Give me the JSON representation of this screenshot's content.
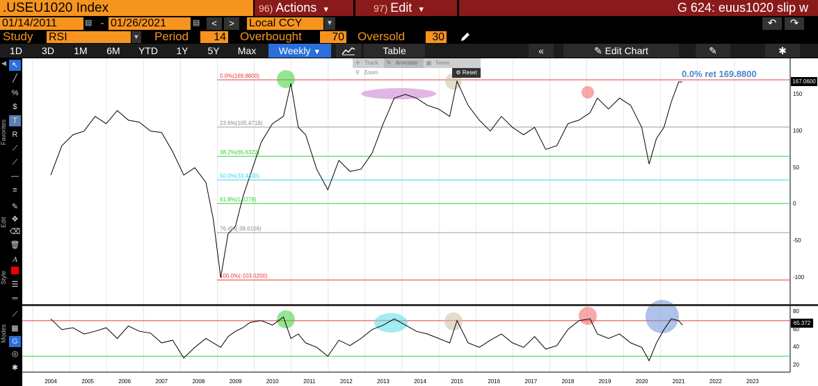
{
  "header": {
    "ticker": ".USEU1020 Index",
    "actions_num": "96)",
    "actions_label": "Actions",
    "edit_num": "97)",
    "edit_label": "Edit",
    "window_title": "G 624: euus1020 slip w"
  },
  "range": {
    "start_date": "01/14/2011",
    "separator": "-",
    "end_date": "01/26/2021",
    "prev": "<",
    "next": ">",
    "currency": "Local CCY"
  },
  "study": {
    "study_label": "Study",
    "study_value": "RSI",
    "period_label": "Period",
    "period_value": "14",
    "overbought_label": "Overbought",
    "overbought_value": "70",
    "oversold_label": "Oversold",
    "oversold_value": "30"
  },
  "toolbar": {
    "periods": [
      "1D",
      "3D",
      "1M",
      "6M",
      "YTD",
      "1Y",
      "5Y",
      "Max"
    ],
    "frequency": "Weekly",
    "table_label": "Table",
    "edit_chart_label": "Edit Chart"
  },
  "sidebar": {
    "favorites_label": "Favorites",
    "edit_label": "Edit",
    "style_label": "Style",
    "modes_label": "Modes"
  },
  "overlay_tools": {
    "track": "Track",
    "annotate": "Annotate",
    "news": "News",
    "zoom": "Zoom",
    "reset": "Reset"
  },
  "annotations": {
    "ret_label": "0.0% ret 169.8800",
    "price_last": "167.0600",
    "rsi_last": "65.372"
  },
  "fib_levels": [
    {
      "label": "0.0%(169.8800)",
      "value": 169.88,
      "color": "#e8383b"
    },
    {
      "label": "23.6%(105.4718)",
      "value": 105.4718,
      "color": "#9a9a9a"
    },
    {
      "label": "38.2%(65.6322)",
      "value": 65.6322,
      "color": "#2fd32f"
    },
    {
      "label": "50.0%(33.4300)",
      "value": 33.43,
      "color": "#33d6e6"
    },
    {
      "label": "61.8%(1.2278)",
      "value": 1.2278,
      "color": "#2fd32f"
    },
    {
      "label": "76.4%(-38.6156)",
      "value": -38.6156,
      "color": "#9a9a9a"
    },
    {
      "label": "100.0%(-103.0200)",
      "value": -103.02,
      "color": "#e8383b"
    }
  ],
  "chart_data": [
    {
      "type": "line",
      "title": "",
      "ylim": [
        -125,
        185
      ],
      "yticks": [
        "150",
        "100",
        "50",
        "0",
        "-50",
        "-100"
      ],
      "x": [
        2004.0,
        2004.3,
        2004.6,
        2004.9,
        2005.2,
        2005.5,
        2005.8,
        2006.1,
        2006.4,
        2006.7,
        2007.0,
        2007.3,
        2007.6,
        2007.9,
        2008.2,
        2008.4,
        2008.6,
        2008.8,
        2009.0,
        2009.2,
        2009.4,
        2009.7,
        2010.0,
        2010.3,
        2010.5,
        2010.7,
        2010.9,
        2011.2,
        2011.5,
        2011.8,
        2012.1,
        2012.4,
        2012.7,
        2013.0,
        2013.3,
        2013.6,
        2013.9,
        2014.2,
        2014.5,
        2014.8,
        2015.0,
        2015.3,
        2015.6,
        2015.9,
        2016.2,
        2016.5,
        2016.8,
        2017.1,
        2017.4,
        2017.7,
        2018.0,
        2018.3,
        2018.6,
        2018.8,
        2019.1,
        2019.4,
        2019.7,
        2020.0,
        2020.2,
        2020.4,
        2020.6,
        2020.8,
        2021.0,
        2021.1
      ],
      "series": [
        {
          "values": [
            40,
            80,
            95,
            100,
            120,
            110,
            128,
            115,
            112,
            100,
            98,
            72,
            40,
            50,
            30,
            -20,
            -100,
            -40,
            -30,
            10,
            40,
            85,
            110,
            120,
            165,
            105,
            95,
            48,
            20,
            60,
            45,
            48,
            70,
            110,
            145,
            150,
            145,
            135,
            130,
            120,
            168,
            135,
            115,
            100,
            120,
            105,
            95,
            105,
            75,
            80,
            110,
            115,
            125,
            145,
            130,
            145,
            135,
            105,
            55,
            90,
            105,
            140,
            167,
            167
          ]
        }
      ]
    },
    {
      "type": "line",
      "title": "",
      "ylim": [
        15,
        85
      ],
      "yticks": [
        "80",
        "60",
        "40",
        "20"
      ],
      "x": [
        2004.0,
        2004.3,
        2004.6,
        2004.9,
        2005.2,
        2005.5,
        2005.8,
        2006.1,
        2006.4,
        2006.7,
        2007.0,
        2007.3,
        2007.6,
        2007.9,
        2008.2,
        2008.4,
        2008.6,
        2008.8,
        2009.0,
        2009.2,
        2009.4,
        2009.7,
        2010.0,
        2010.3,
        2010.5,
        2010.7,
        2010.9,
        2011.2,
        2011.5,
        2011.8,
        2012.1,
        2012.4,
        2012.7,
        2013.0,
        2013.3,
        2013.6,
        2013.9,
        2014.2,
        2014.5,
        2014.8,
        2015.0,
        2015.3,
        2015.6,
        2015.9,
        2016.2,
        2016.5,
        2016.8,
        2017.1,
        2017.4,
        2017.7,
        2018.0,
        2018.3,
        2018.6,
        2018.8,
        2019.1,
        2019.4,
        2019.7,
        2020.0,
        2020.2,
        2020.4,
        2020.6,
        2020.8,
        2021.0,
        2021.1
      ],
      "series": [
        {
          "values": [
            72,
            60,
            62,
            55,
            58,
            62,
            50,
            64,
            58,
            56,
            45,
            48,
            28,
            40,
            50,
            45,
            40,
            52,
            58,
            62,
            68,
            70,
            65,
            74,
            50,
            55,
            45,
            40,
            30,
            48,
            42,
            50,
            60,
            65,
            72,
            65,
            58,
            55,
            50,
            45,
            70,
            45,
            40,
            48,
            55,
            45,
            40,
            52,
            38,
            42,
            60,
            70,
            72,
            55,
            50,
            55,
            45,
            40,
            25,
            45,
            60,
            72,
            70,
            65
          ]
        }
      ]
    }
  ],
  "x_axis": {
    "year_labels": [
      "2004",
      "2005",
      "2006",
      "2007",
      "2008",
      "2009",
      "2010",
      "2011",
      "2012",
      "2013",
      "2014",
      "2015",
      "2016",
      "2017",
      "2018",
      "2019",
      "2020",
      "2021",
      "2022",
      "2023"
    ]
  },
  "rsi_levels": {
    "overbought": 70,
    "oversold": 30
  }
}
